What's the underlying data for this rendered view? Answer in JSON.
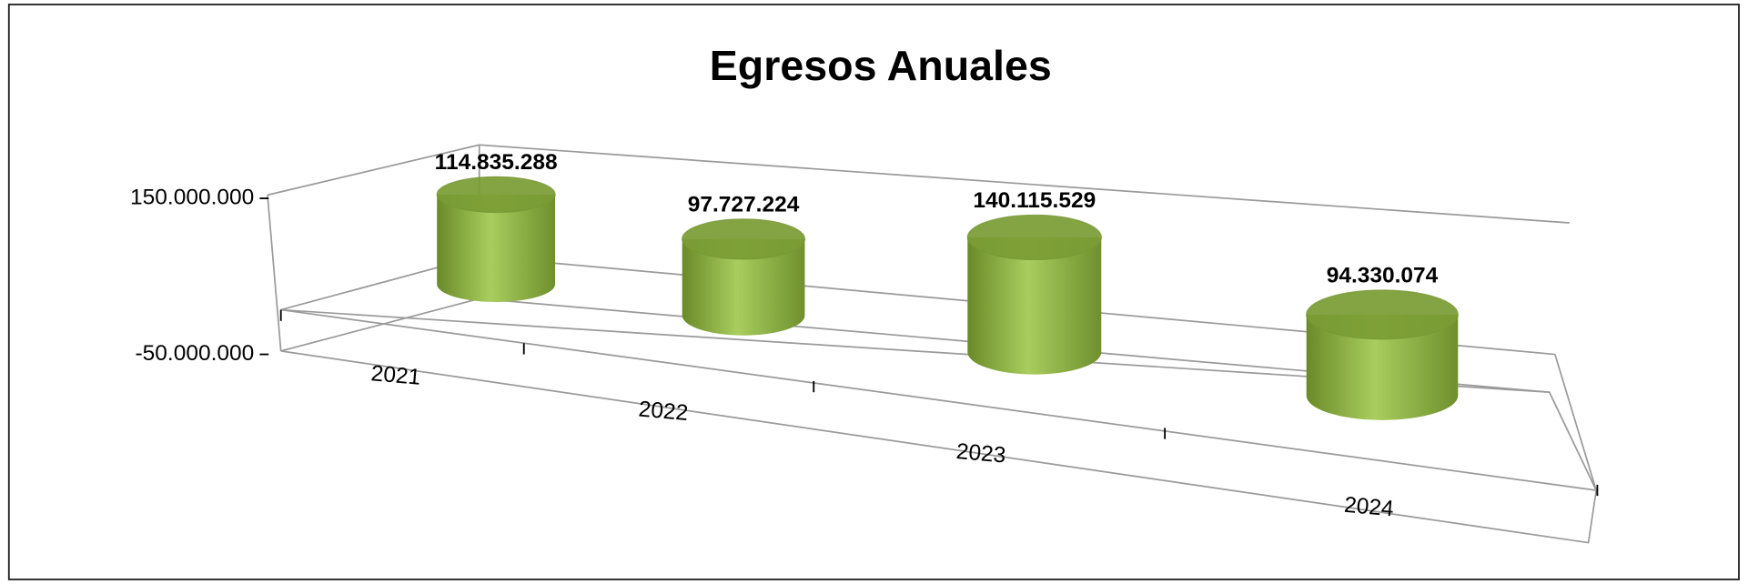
{
  "chart_data": {
    "type": "bar3d",
    "title": "Egresos Anuales",
    "categories": [
      "2021",
      "2022",
      "2023",
      "2024"
    ],
    "values": [
      114835288,
      97727224,
      140115529,
      94330074
    ],
    "value_labels": [
      "114.835.288",
      "97.727.224",
      "140.115.529",
      "94.330.074"
    ],
    "color": "#8db040",
    "ylim": [
      -50000000,
      150000000
    ],
    "yticks": [
      {
        "value": -50000000,
        "label": "-50.000.000"
      },
      {
        "value": 150000000,
        "label": "150.000.000"
      }
    ]
  }
}
